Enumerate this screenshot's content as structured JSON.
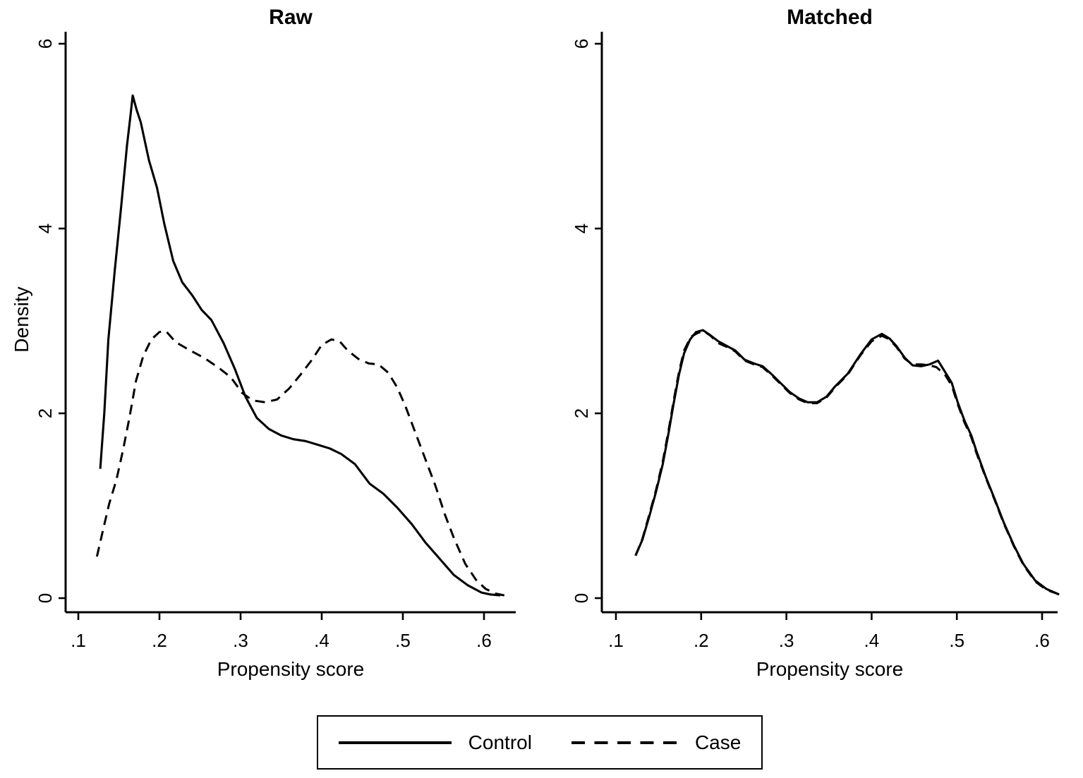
{
  "legend": {
    "items": [
      {
        "label": "Control",
        "style": "solid"
      },
      {
        "label": "Case",
        "style": "dashed"
      }
    ]
  },
  "chart_data": [
    {
      "type": "line",
      "title": "Raw",
      "xlabel": "Propensity score",
      "ylabel": "Density",
      "xlim": [
        0.08,
        0.66
      ],
      "ylim": [
        0,
        6
      ],
      "grid": false,
      "legend_position": "bottom-shared",
      "xticks": [
        0.1,
        0.2,
        0.3,
        0.4,
        0.5,
        0.6
      ],
      "xtick_labels": [
        ".1",
        ".2",
        ".3",
        ".4",
        ".5",
        ".6"
      ],
      "yticks": [
        0,
        2,
        4,
        6
      ],
      "ytick_labels": [
        "0",
        "2",
        "4",
        "6"
      ],
      "series": [
        {
          "name": "Control",
          "line_style": "solid",
          "points": [
            [
              0.127,
              1.4
            ],
            [
              0.132,
              2.0
            ],
            [
              0.137,
              2.8
            ],
            [
              0.145,
              3.55
            ],
            [
              0.153,
              4.25
            ],
            [
              0.16,
              4.9
            ],
            [
              0.164,
              5.2
            ],
            [
              0.167,
              5.44
            ],
            [
              0.172,
              5.28
            ],
            [
              0.177,
              5.15
            ],
            [
              0.187,
              4.74
            ],
            [
              0.197,
              4.44
            ],
            [
              0.206,
              4.05
            ],
            [
              0.217,
              3.65
            ],
            [
              0.228,
              3.42
            ],
            [
              0.241,
              3.27
            ],
            [
              0.252,
              3.12
            ],
            [
              0.264,
              3.01
            ],
            [
              0.279,
              2.76
            ],
            [
              0.293,
              2.48
            ],
            [
              0.306,
              2.18
            ],
            [
              0.32,
              1.95
            ],
            [
              0.335,
              1.83
            ],
            [
              0.35,
              1.76
            ],
            [
              0.365,
              1.72
            ],
            [
              0.38,
              1.7
            ],
            [
              0.395,
              1.66
            ],
            [
              0.41,
              1.62
            ],
            [
              0.424,
              1.56
            ],
            [
              0.441,
              1.45
            ],
            [
              0.459,
              1.24
            ],
            [
              0.476,
              1.13
            ],
            [
              0.493,
              0.98
            ],
            [
              0.511,
              0.8
            ],
            [
              0.528,
              0.6
            ],
            [
              0.546,
              0.42
            ],
            [
              0.563,
              0.25
            ],
            [
              0.58,
              0.14
            ],
            [
              0.597,
              0.06
            ],
            [
              0.608,
              0.04
            ],
            [
              0.62,
              0.03
            ]
          ]
        },
        {
          "name": "Case",
          "line_style": "dashed",
          "points": [
            [
              0.123,
              0.45
            ],
            [
              0.13,
              0.72
            ],
            [
              0.138,
              1.02
            ],
            [
              0.147,
              1.28
            ],
            [
              0.155,
              1.6
            ],
            [
              0.163,
              1.95
            ],
            [
              0.171,
              2.35
            ],
            [
              0.18,
              2.62
            ],
            [
              0.19,
              2.8
            ],
            [
              0.2,
              2.88
            ],
            [
              0.208,
              2.89
            ],
            [
              0.22,
              2.77
            ],
            [
              0.238,
              2.68
            ],
            [
              0.255,
              2.6
            ],
            [
              0.272,
              2.5
            ],
            [
              0.288,
              2.39
            ],
            [
              0.302,
              2.22
            ],
            [
              0.315,
              2.14
            ],
            [
              0.33,
              2.12
            ],
            [
              0.345,
              2.15
            ],
            [
              0.36,
              2.27
            ],
            [
              0.374,
              2.42
            ],
            [
              0.388,
              2.58
            ],
            [
              0.4,
              2.74
            ],
            [
              0.412,
              2.8
            ],
            [
              0.422,
              2.78
            ],
            [
              0.432,
              2.68
            ],
            [
              0.445,
              2.59
            ],
            [
              0.458,
              2.54
            ],
            [
              0.47,
              2.53
            ],
            [
              0.482,
              2.44
            ],
            [
              0.493,
              2.28
            ],
            [
              0.503,
              2.08
            ],
            [
              0.515,
              1.8
            ],
            [
              0.527,
              1.52
            ],
            [
              0.54,
              1.22
            ],
            [
              0.552,
              0.9
            ],
            [
              0.563,
              0.65
            ],
            [
              0.577,
              0.37
            ],
            [
              0.59,
              0.2
            ],
            [
              0.602,
              0.1
            ],
            [
              0.614,
              0.05
            ],
            [
              0.625,
              0.03
            ]
          ]
        }
      ]
    },
    {
      "type": "line",
      "title": "Matched",
      "xlabel": "Propensity score",
      "ylabel": "",
      "xlim": [
        0.08,
        0.66
      ],
      "ylim": [
        0,
        6
      ],
      "grid": false,
      "legend_position": "bottom-shared",
      "xticks": [
        0.1,
        0.2,
        0.3,
        0.4,
        0.5,
        0.6
      ],
      "xtick_labels": [
        ".1",
        ".2",
        ".3",
        ".4",
        ".5",
        ".6"
      ],
      "yticks": [
        0,
        2,
        4,
        6
      ],
      "ytick_labels": [
        "0",
        "2",
        "4",
        "6"
      ],
      "series": [
        {
          "name": "Control",
          "line_style": "solid",
          "points": [
            [
              0.123,
              0.46
            ],
            [
              0.131,
              0.63
            ],
            [
              0.139,
              0.88
            ],
            [
              0.147,
              1.15
            ],
            [
              0.155,
              1.45
            ],
            [
              0.162,
              1.8
            ],
            [
              0.168,
              2.12
            ],
            [
              0.174,
              2.42
            ],
            [
              0.18,
              2.65
            ],
            [
              0.187,
              2.8
            ],
            [
              0.194,
              2.88
            ],
            [
              0.202,
              2.9
            ],
            [
              0.21,
              2.85
            ],
            [
              0.22,
              2.78
            ],
            [
              0.23,
              2.73
            ],
            [
              0.24,
              2.68
            ],
            [
              0.251,
              2.58
            ],
            [
              0.262,
              2.54
            ],
            [
              0.272,
              2.51
            ],
            [
              0.283,
              2.42
            ],
            [
              0.293,
              2.33
            ],
            [
              0.304,
              2.23
            ],
            [
              0.315,
              2.16
            ],
            [
              0.325,
              2.12
            ],
            [
              0.336,
              2.12
            ],
            [
              0.347,
              2.18
            ],
            [
              0.357,
              2.29
            ],
            [
              0.372,
              2.43
            ],
            [
              0.387,
              2.64
            ],
            [
              0.4,
              2.8
            ],
            [
              0.412,
              2.86
            ],
            [
              0.421,
              2.81
            ],
            [
              0.429,
              2.73
            ],
            [
              0.439,
              2.6
            ],
            [
              0.448,
              2.52
            ],
            [
              0.458,
              2.51
            ],
            [
              0.468,
              2.53
            ],
            [
              0.478,
              2.57
            ],
            [
              0.486,
              2.45
            ],
            [
              0.494,
              2.33
            ],
            [
              0.501,
              2.12
            ],
            [
              0.509,
              1.92
            ],
            [
              0.517,
              1.76
            ],
            [
              0.523,
              1.59
            ],
            [
              0.534,
              1.31
            ],
            [
              0.544,
              1.08
            ],
            [
              0.555,
              0.82
            ],
            [
              0.567,
              0.57
            ],
            [
              0.578,
              0.37
            ],
            [
              0.592,
              0.19
            ],
            [
              0.605,
              0.1
            ],
            [
              0.62,
              0.04
            ]
          ]
        },
        {
          "name": "Case",
          "line_style": "dashed",
          "points": [
            [
              0.123,
              0.46
            ],
            [
              0.131,
              0.64
            ],
            [
              0.139,
              0.9
            ],
            [
              0.147,
              1.17
            ],
            [
              0.155,
              1.48
            ],
            [
              0.162,
              1.83
            ],
            [
              0.168,
              2.15
            ],
            [
              0.174,
              2.45
            ],
            [
              0.18,
              2.68
            ],
            [
              0.188,
              2.83
            ],
            [
              0.196,
              2.87
            ],
            [
              0.203,
              2.89
            ],
            [
              0.211,
              2.84
            ],
            [
              0.22,
              2.76
            ],
            [
              0.23,
              2.72
            ],
            [
              0.24,
              2.67
            ],
            [
              0.251,
              2.57
            ],
            [
              0.262,
              2.53
            ],
            [
              0.272,
              2.5
            ],
            [
              0.283,
              2.41
            ],
            [
              0.293,
              2.32
            ],
            [
              0.304,
              2.22
            ],
            [
              0.315,
              2.15
            ],
            [
              0.325,
              2.11
            ],
            [
              0.336,
              2.11
            ],
            [
              0.347,
              2.17
            ],
            [
              0.357,
              2.28
            ],
            [
              0.372,
              2.42
            ],
            [
              0.387,
              2.63
            ],
            [
              0.4,
              2.78
            ],
            [
              0.412,
              2.84
            ],
            [
              0.421,
              2.8
            ],
            [
              0.429,
              2.72
            ],
            [
              0.439,
              2.59
            ],
            [
              0.448,
              2.53
            ],
            [
              0.458,
              2.53
            ],
            [
              0.468,
              2.52
            ],
            [
              0.476,
              2.5
            ],
            [
              0.486,
              2.42
            ],
            [
              0.494,
              2.3
            ],
            [
              0.501,
              2.1
            ],
            [
              0.509,
              1.9
            ],
            [
              0.517,
              1.74
            ],
            [
              0.523,
              1.57
            ],
            [
              0.534,
              1.3
            ],
            [
              0.544,
              1.07
            ],
            [
              0.555,
              0.81
            ],
            [
              0.567,
              0.56
            ],
            [
              0.578,
              0.36
            ],
            [
              0.592,
              0.18
            ],
            [
              0.605,
              0.09
            ],
            [
              0.62,
              0.04
            ]
          ]
        }
      ]
    }
  ]
}
